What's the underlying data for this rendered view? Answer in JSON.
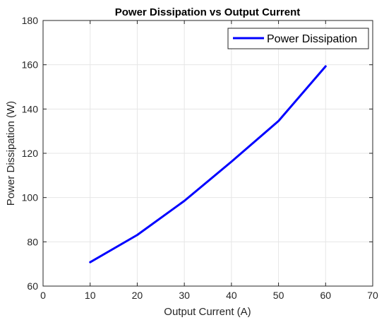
{
  "chart_data": {
    "type": "line",
    "title": "Power Dissipation vs Output Current",
    "xlabel": "Output Current (A)",
    "ylabel": "Power Dissipation (W)",
    "xlim": [
      0,
      70
    ],
    "ylim": [
      60,
      180
    ],
    "xticks": [
      "0",
      "10",
      "20",
      "30",
      "40",
      "50",
      "60",
      "70"
    ],
    "yticks": [
      "60",
      "80",
      "100",
      "120",
      "140",
      "160",
      "180"
    ],
    "grid": true,
    "legend_position": "top-right",
    "series": [
      {
        "name": "Power Dissipation",
        "color": "#0000ff",
        "x": [
          10,
          20,
          30,
          40,
          50,
          60
        ],
        "y": [
          70.8,
          83.1,
          98.5,
          116.2,
          134.6,
          159.3
        ]
      }
    ]
  }
}
